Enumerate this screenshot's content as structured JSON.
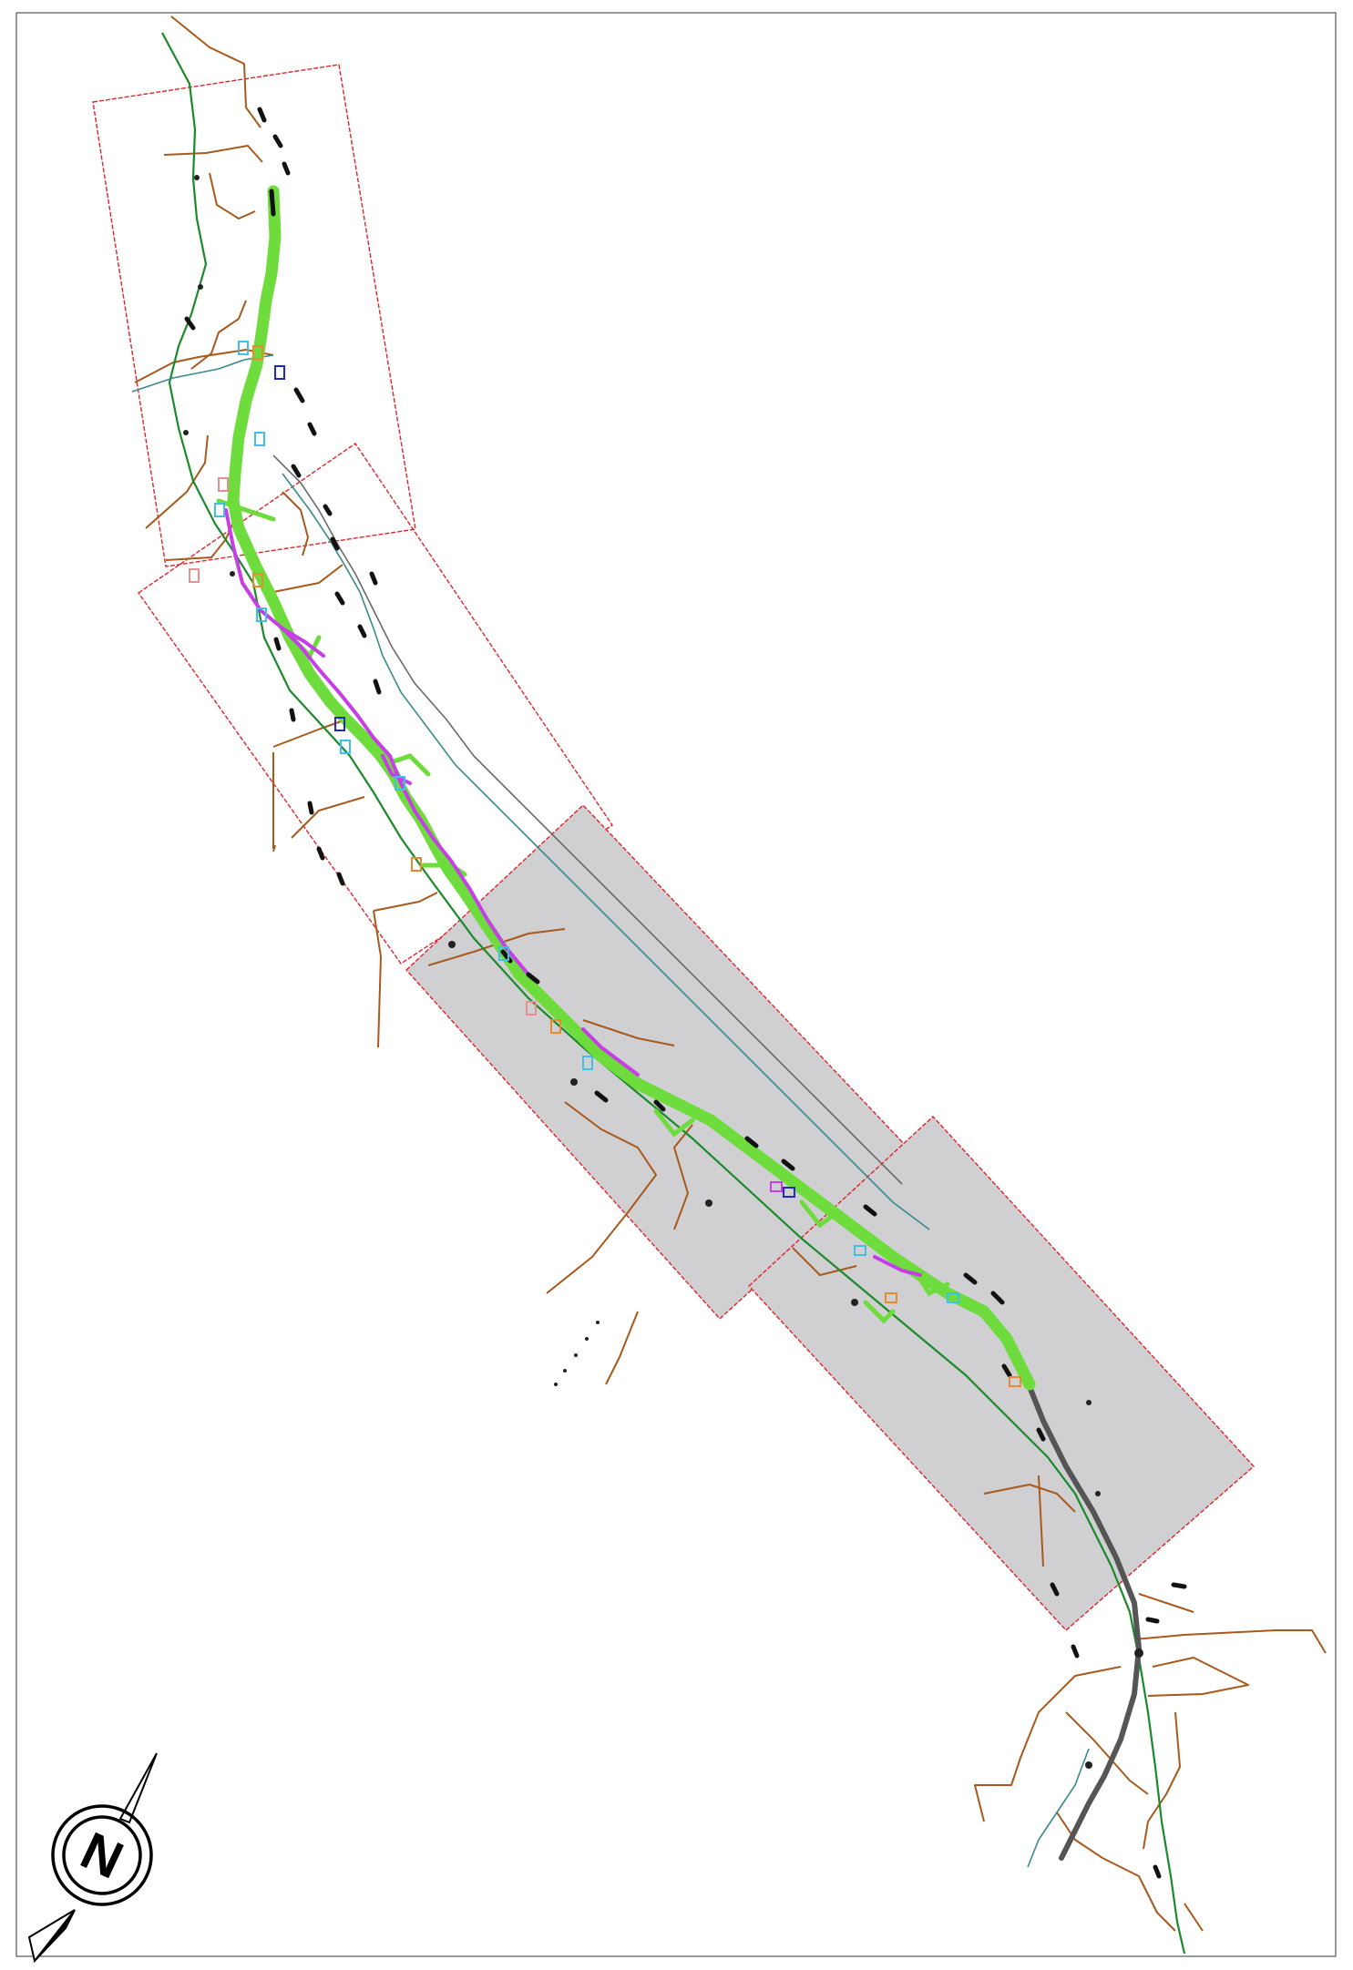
{
  "map": {
    "north_arrow_letter": "N",
    "colors": {
      "sheet_border": "#e0242a",
      "sheet_fill": "#d0d0d2",
      "road": "#a8591b",
      "railway": "#1a8a2a",
      "corridor": "#6ddc3c",
      "alternative": "#c73ee6",
      "existing_road": "#555555"
    }
  }
}
